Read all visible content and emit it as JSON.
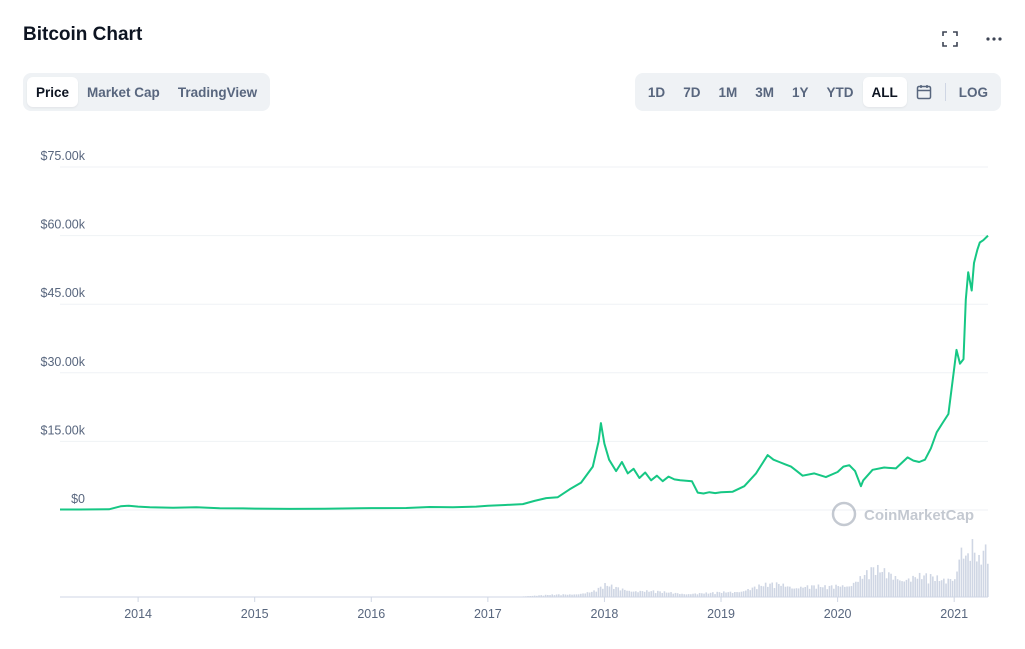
{
  "title": "Bitcoin Chart",
  "top_icons": [
    "fullscreen-icon",
    "more-icon"
  ],
  "view_tabs": [
    {
      "label": "Price",
      "active": true
    },
    {
      "label": "Market Cap",
      "active": false
    },
    {
      "label": "TradingView",
      "active": false
    }
  ],
  "range_tabs": [
    {
      "label": "1D",
      "active": false
    },
    {
      "label": "7D",
      "active": false
    },
    {
      "label": "1M",
      "active": false
    },
    {
      "label": "3M",
      "active": false
    },
    {
      "label": "1Y",
      "active": false
    },
    {
      "label": "YTD",
      "active": false
    },
    {
      "label": "ALL",
      "active": true
    }
  ],
  "calendar_icon": "calendar-icon",
  "log_label": "LOG",
  "watermark": "CoinMarketCap",
  "colors": {
    "line": "#16c784",
    "volume": "#cfd6e4",
    "grid": "#eff2f5",
    "axis_text": "#58667e"
  },
  "chart_data": {
    "type": "line",
    "title": "",
    "xlabel": "",
    "ylabel": "",
    "y_ticks": [
      "$0",
      "$15.00k",
      "$30.00k",
      "$45.00k",
      "$60.00k",
      "$75.00k"
    ],
    "y_tick_values": [
      0,
      15000,
      30000,
      45000,
      60000,
      75000
    ],
    "ylim": [
      0,
      75000
    ],
    "x_ticks": [
      "2014",
      "2015",
      "2016",
      "2017",
      "2018",
      "2019",
      "2020",
      "2021"
    ],
    "xlim": [
      2013.33,
      2021.29
    ],
    "grid": true,
    "series": [
      {
        "x": [
          2013.33,
          2013.5,
          2013.75,
          2013.85,
          2013.92,
          2014.0,
          2014.1,
          2014.3,
          2014.5,
          2014.7,
          2014.9,
          2015.0,
          2015.3,
          2015.6,
          2015.9,
          2016.0,
          2016.3,
          2016.5,
          2016.7,
          2016.9,
          2017.0,
          2017.15,
          2017.3,
          2017.4,
          2017.5,
          2017.6,
          2017.7,
          2017.8,
          2017.9,
          2017.95,
          2017.97,
          2018.0,
          2018.04,
          2018.1,
          2018.15,
          2018.2,
          2018.25,
          2018.3,
          2018.35,
          2018.4,
          2018.45,
          2018.5,
          2018.55,
          2018.6,
          2018.65,
          2018.7,
          2018.75,
          2018.8,
          2018.85,
          2018.9,
          2018.95,
          2019.0,
          2019.1,
          2019.2,
          2019.3,
          2019.4,
          2019.45,
          2019.5,
          2019.55,
          2019.6,
          2019.65,
          2019.7,
          2019.8,
          2019.9,
          2020.0,
          2020.05,
          2020.1,
          2020.15,
          2020.2,
          2020.22,
          2020.3,
          2020.4,
          2020.5,
          2020.6,
          2020.65,
          2020.7,
          2020.75,
          2020.8,
          2020.85,
          2020.9,
          2020.95,
          2021.0,
          2021.02,
          2021.05,
          2021.08,
          2021.1,
          2021.12,
          2021.15,
          2021.17,
          2021.19,
          2021.2,
          2021.22,
          2021.25,
          2021.29
        ],
        "y": [
          100,
          110,
          150,
          800,
          950,
          750,
          600,
          500,
          600,
          400,
          350,
          300,
          250,
          280,
          380,
          420,
          430,
          650,
          620,
          750,
          950,
          1100,
          1300,
          2000,
          2600,
          2800,
          4500,
          6000,
          9500,
          15000,
          19000,
          14500,
          11000,
          8500,
          10500,
          8000,
          9000,
          7000,
          8200,
          6500,
          7500,
          6300,
          7300,
          6700,
          6500,
          6400,
          6300,
          3800,
          3600,
          3900,
          3700,
          3900,
          4000,
          5200,
          8000,
          12000,
          11000,
          10500,
          10000,
          9500,
          8500,
          7500,
          8000,
          7200,
          8300,
          9500,
          9800,
          8500,
          5200,
          6500,
          8800,
          9300,
          9100,
          11500,
          10800,
          10500,
          11000,
          13500,
          17000,
          19000,
          21000,
          31000,
          35000,
          32000,
          33000,
          46000,
          52000,
          48000,
          54000,
          56000,
          57000,
          58500,
          59000,
          60000
        ]
      }
    ],
    "volume_series": {
      "name": "",
      "note": "volume bars relative heights",
      "x": [
        2017.3,
        2017.5,
        2017.7,
        2017.9,
        2018.0,
        2018.1,
        2018.3,
        2018.5,
        2018.7,
        2018.9,
        2019.1,
        2019.3,
        2019.5,
        2019.7,
        2019.9,
        2020.1,
        2020.3,
        2020.5,
        2020.7,
        2020.9,
        2021.0,
        2021.05,
        2021.1,
        2021.15,
        2021.2,
        2021.25,
        2021.29
      ],
      "values": [
        1,
        2,
        3,
        6,
        12,
        10,
        7,
        5,
        4,
        4,
        6,
        11,
        14,
        12,
        10,
        16,
        28,
        24,
        22,
        18,
        25,
        65,
        45,
        55,
        35,
        45,
        50
      ]
    }
  }
}
